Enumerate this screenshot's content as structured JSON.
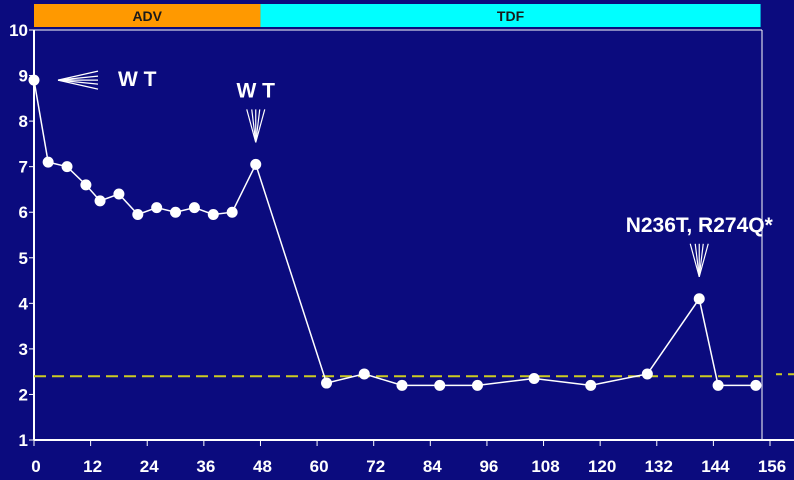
{
  "chart_data": {
    "type": "line",
    "title": "",
    "xlabel": "",
    "ylabel": "",
    "xlim": [
      0,
      156
    ],
    "ylim": [
      1,
      10
    ],
    "x_ticks": [
      0,
      12,
      24,
      36,
      48,
      60,
      72,
      84,
      96,
      108,
      120,
      132,
      144,
      156
    ],
    "y_ticks": [
      1,
      2,
      3,
      4,
      5,
      6,
      7,
      8,
      9,
      10
    ],
    "grid": false,
    "series": [
      {
        "points": [
          {
            "x": 0,
            "y": 8.9
          },
          {
            "x": 3,
            "y": 7.1
          },
          {
            "x": 7,
            "y": 7.0
          },
          {
            "x": 11,
            "y": 6.6
          },
          {
            "x": 14,
            "y": 6.25
          },
          {
            "x": 18,
            "y": 6.4
          },
          {
            "x": 22,
            "y": 5.95
          },
          {
            "x": 26,
            "y": 6.1
          },
          {
            "x": 30,
            "y": 6.0
          },
          {
            "x": 34,
            "y": 6.1
          },
          {
            "x": 38,
            "y": 5.95
          },
          {
            "x": 42,
            "y": 6.0
          },
          {
            "x": 47,
            "y": 7.05
          },
          {
            "x": 62,
            "y": 2.25
          },
          {
            "x": 70,
            "y": 2.45
          },
          {
            "x": 78,
            "y": 2.2
          },
          {
            "x": 86,
            "y": 2.2
          },
          {
            "x": 94,
            "y": 2.2
          },
          {
            "x": 106,
            "y": 2.35
          },
          {
            "x": 118,
            "y": 2.2
          },
          {
            "x": 130,
            "y": 2.45
          },
          {
            "x": 141,
            "y": 4.1
          },
          {
            "x": 145,
            "y": 2.2
          },
          {
            "x": 153,
            "y": 2.2
          }
        ],
        "color": "#ffffff"
      }
    ],
    "reference_line": {
      "y": 2.4,
      "color": "#cccc22",
      "style": "dashed"
    },
    "phases": [
      {
        "label": "ADV",
        "x_start": 0,
        "x_end": 48,
        "color": "#ff9900"
      },
      {
        "label": "TDF",
        "x_start": 48,
        "x_end": 154,
        "color": "#00ffff"
      }
    ],
    "annotations": [
      {
        "text": "W T",
        "x": 0,
        "y": 8.9,
        "arrow": "left"
      },
      {
        "text": "W T",
        "x": 47,
        "y": 7.05,
        "arrow": "down"
      },
      {
        "text": "N236T, R274Q*",
        "x": 141,
        "y": 4.1,
        "arrow": "down"
      }
    ]
  }
}
